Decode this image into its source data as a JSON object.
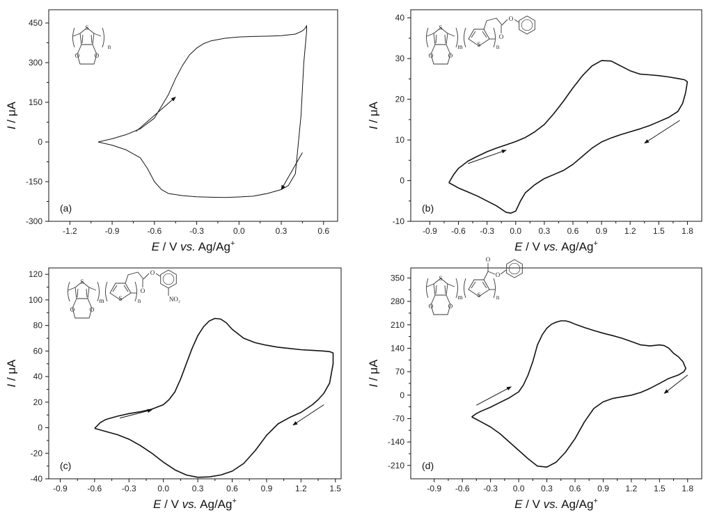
{
  "figure": {
    "common_xlabel": {
      "italic": "E",
      "rest": " / V ",
      "vs": "vs.",
      "ref": " Ag/Ag",
      "sup": "+"
    },
    "common_ylabel": {
      "italic": "I",
      "rest": " / μA"
    }
  },
  "chart_data": [
    {
      "type": "line",
      "panel": "(a)",
      "xlim": [
        -1.35,
        0.7
      ],
      "ylim": [
        -300,
        500
      ],
      "xticks": [
        -1.2,
        -0.9,
        -0.6,
        -0.3,
        0.0,
        0.3,
        0.6
      ],
      "xtick_labels": [
        "-1.2",
        "-0.9",
        "-0.6",
        "-0.3",
        "0.0",
        "0.3",
        "0.6"
      ],
      "yticks": [
        -300,
        -150,
        0,
        150,
        300,
        450
      ],
      "ytick_labels": [
        "-300",
        "-150",
        "0",
        "150",
        "300",
        "450"
      ],
      "polymer": "PEDOT",
      "arrows": [
        {
          "from": [
            -0.73,
            40
          ],
          "to": [
            -0.45,
            170
          ]
        },
        {
          "from": [
            0.45,
            -40
          ],
          "to": [
            0.3,
            -180
          ]
        }
      ],
      "series": [
        {
          "x": [
            -1.0,
            -0.9,
            -0.8,
            -0.7,
            -0.6,
            -0.5,
            -0.45,
            -0.4,
            -0.35,
            -0.3,
            -0.25,
            -0.2,
            -0.1,
            0.0,
            0.1,
            0.2,
            0.3,
            0.4,
            0.45,
            0.47,
            0.48,
            0.48,
            0.46,
            0.44,
            0.4,
            0.35,
            0.3,
            0.2,
            0.1,
            0.0,
            -0.1,
            -0.2,
            -0.3,
            -0.4,
            -0.5,
            -0.55,
            -0.6,
            -0.65,
            -0.7,
            -0.8,
            -0.9,
            -1.0
          ],
          "y": [
            0,
            12,
            28,
            50,
            90,
            180,
            240,
            290,
            330,
            355,
            372,
            382,
            392,
            397,
            399,
            400,
            402,
            408,
            420,
            430,
            440,
            420,
            300,
            100,
            -120,
            -165,
            -180,
            -195,
            -205,
            -208,
            -210,
            -209,
            -207,
            -203,
            -195,
            -180,
            -150,
            -100,
            -60,
            -30,
            -12,
            0
          ]
        }
      ]
    },
    {
      "type": "line",
      "panel": "(b)",
      "xlim": [
        -1.1,
        1.95
      ],
      "ylim": [
        -10,
        42
      ],
      "xticks": [
        -0.9,
        -0.6,
        -0.3,
        0.0,
        0.3,
        0.6,
        0.9,
        1.2,
        1.5,
        1.8
      ],
      "xtick_labels": [
        "-0.9",
        "-0.6",
        "-0.3",
        "0.0",
        "0.3",
        "0.6",
        "0.9",
        "1.2",
        "1.5",
        "1.8"
      ],
      "yticks": [
        -10,
        0,
        10,
        20,
        30,
        40
      ],
      "ytick_labels": [
        "-10",
        "0",
        "10",
        "20",
        "30",
        "40"
      ],
      "polymer": "P(EDOT-co-thiophene phenyl acetate)",
      "arrows": [
        {
          "from": [
            -0.5,
            4.2
          ],
          "to": [
            -0.1,
            7.5
          ]
        },
        {
          "from": [
            1.72,
            14.8
          ],
          "to": [
            1.35,
            9.2
          ]
        }
      ],
      "series": [
        {
          "x": [
            -0.7,
            -0.65,
            -0.6,
            -0.5,
            -0.4,
            -0.3,
            -0.2,
            -0.1,
            0.0,
            0.1,
            0.2,
            0.3,
            0.4,
            0.5,
            0.6,
            0.7,
            0.8,
            0.9,
            1.0,
            1.1,
            1.2,
            1.3,
            1.4,
            1.5,
            1.6,
            1.7,
            1.77,
            1.8,
            1.78,
            1.75,
            1.7,
            1.6,
            1.5,
            1.4,
            1.3,
            1.2,
            1.1,
            1.0,
            0.9,
            0.8,
            0.7,
            0.6,
            0.5,
            0.4,
            0.3,
            0.2,
            0.1,
            0.05,
            0.0,
            -0.05,
            -0.1,
            -0.2,
            -0.3,
            -0.4,
            -0.5,
            -0.6,
            -0.7
          ],
          "y": [
            -0.5,
            1.5,
            3.0,
            4.8,
            6.0,
            7.1,
            8.0,
            8.8,
            9.6,
            10.6,
            12.0,
            13.8,
            16.5,
            19.5,
            22.8,
            25.8,
            28.2,
            29.5,
            29.4,
            28.2,
            27.0,
            26.2,
            26.0,
            25.8,
            25.5,
            25.1,
            24.8,
            24.3,
            21.5,
            19.0,
            17.0,
            15.5,
            14.5,
            13.5,
            12.7,
            12.0,
            11.3,
            10.5,
            9.5,
            8.0,
            6.0,
            4.0,
            2.5,
            1.5,
            0.5,
            -1.0,
            -3.0,
            -5.0,
            -7.5,
            -8.0,
            -7.8,
            -6.2,
            -5.0,
            -3.8,
            -2.8,
            -1.8,
            -0.5
          ]
        }
      ]
    },
    {
      "type": "line",
      "panel": "(c)",
      "xlim": [
        -1.0,
        1.55
      ],
      "ylim": [
        -40,
        125
      ],
      "xticks": [
        -0.9,
        -0.6,
        -0.3,
        0.0,
        0.3,
        0.6,
        0.9,
        1.2,
        1.5
      ],
      "xtick_labels": [
        "-0.9",
        "-0.6",
        "-0.3",
        "0.0",
        "0.3",
        "0.6",
        "0.9",
        "1.2",
        "1.5"
      ],
      "yticks": [
        -40,
        -20,
        0,
        20,
        40,
        60,
        80,
        100,
        120
      ],
      "ytick_labels": [
        "-40",
        "-20",
        "0",
        "20",
        "40",
        "60",
        "80",
        "100",
        "120"
      ],
      "polymer": "P(EDOT-co-thiophene 4-nitrophenyl acetate)",
      "arrows": [
        {
          "from": [
            -0.38,
            7.5
          ],
          "to": [
            -0.1,
            14.0
          ]
        },
        {
          "from": [
            1.4,
            18.0
          ],
          "to": [
            1.13,
            2.0
          ]
        }
      ],
      "series": [
        {
          "x": [
            -0.6,
            -0.55,
            -0.5,
            -0.4,
            -0.3,
            -0.2,
            -0.1,
            0.0,
            0.05,
            0.1,
            0.15,
            0.2,
            0.25,
            0.3,
            0.35,
            0.4,
            0.45,
            0.5,
            0.55,
            0.6,
            0.7,
            0.8,
            0.9,
            1.0,
            1.1,
            1.2,
            1.3,
            1.4,
            1.45,
            1.48,
            1.48,
            1.45,
            1.4,
            1.35,
            1.3,
            1.2,
            1.1,
            1.0,
            0.9,
            0.8,
            0.7,
            0.6,
            0.5,
            0.4,
            0.3,
            0.2,
            0.1,
            0.0,
            -0.1,
            -0.2,
            -0.3,
            -0.4,
            -0.5,
            -0.6
          ],
          "y": [
            -0.5,
            4.0,
            6.5,
            9.0,
            11.0,
            12.5,
            14.5,
            18.0,
            22.0,
            28.0,
            38.0,
            50.0,
            62.0,
            72.0,
            79.0,
            83.5,
            85.5,
            85.0,
            82.0,
            77.0,
            70.0,
            66.5,
            64.5,
            63.0,
            62.0,
            61.0,
            60.5,
            60.0,
            59.5,
            58.5,
            50.0,
            35.0,
            27.0,
            22.0,
            18.0,
            12.0,
            8.0,
            3.0,
            -6.0,
            -18.0,
            -28.0,
            -34.0,
            -37.0,
            -38.5,
            -38.8,
            -37.0,
            -33.0,
            -27.0,
            -20.0,
            -14.0,
            -9.0,
            -5.5,
            -3.0,
            -0.5
          ]
        }
      ]
    },
    {
      "type": "line",
      "panel": "(d)",
      "xlim": [
        -1.15,
        1.95
      ],
      "ylim": [
        -250,
        380
      ],
      "xticks": [
        -0.9,
        -0.6,
        -0.3,
        0.0,
        0.3,
        0.6,
        0.9,
        1.2,
        1.5,
        1.8
      ],
      "xtick_labels": [
        "-0.9",
        "-0.6",
        "-0.3",
        "0.0",
        "0.3",
        "0.6",
        "0.9",
        "1.2",
        "1.5",
        "1.8"
      ],
      "yticks": [
        -210,
        -140,
        -70,
        0,
        70,
        140,
        210,
        280,
        350
      ],
      "ytick_labels": [
        "-210",
        "-140",
        "-70",
        "0",
        "70",
        "140",
        "210",
        "280",
        "350"
      ],
      "polymer": "P(EDOT-co-thiophene phenyl carboxylate)",
      "arrows": [
        {
          "from": [
            -0.45,
            -30
          ],
          "to": [
            -0.08,
            25
          ]
        },
        {
          "from": [
            1.8,
            60
          ],
          "to": [
            1.55,
            5
          ]
        }
      ],
      "series": [
        {
          "x": [
            -0.5,
            -0.45,
            -0.4,
            -0.3,
            -0.2,
            -0.1,
            0.0,
            0.05,
            0.1,
            0.15,
            0.2,
            0.25,
            0.3,
            0.35,
            0.4,
            0.45,
            0.5,
            0.55,
            0.6,
            0.7,
            0.8,
            0.9,
            1.0,
            1.1,
            1.2,
            1.3,
            1.4,
            1.5,
            1.55,
            1.6,
            1.65,
            1.7,
            1.75,
            1.78,
            1.76,
            1.7,
            1.6,
            1.5,
            1.4,
            1.3,
            1.2,
            1.1,
            1.0,
            0.9,
            0.8,
            0.7,
            0.6,
            0.5,
            0.4,
            0.3,
            0.2,
            0.1,
            0.0,
            -0.1,
            -0.2,
            -0.3,
            -0.4,
            -0.5
          ],
          "y": [
            -65,
            -55,
            -48,
            -36,
            -22,
            -8,
            10,
            30,
            60,
            100,
            150,
            180,
            200,
            212,
            218,
            222,
            222,
            218,
            212,
            202,
            193,
            185,
            178,
            170,
            160,
            150,
            147,
            150,
            148,
            140,
            125,
            115,
            100,
            80,
            70,
            60,
            50,
            35,
            20,
            8,
            0,
            -5,
            -10,
            -20,
            -40,
            -80,
            -130,
            -170,
            -200,
            -215,
            -212,
            -190,
            -165,
            -140,
            -115,
            -95,
            -80,
            -65
          ]
        }
      ]
    }
  ]
}
